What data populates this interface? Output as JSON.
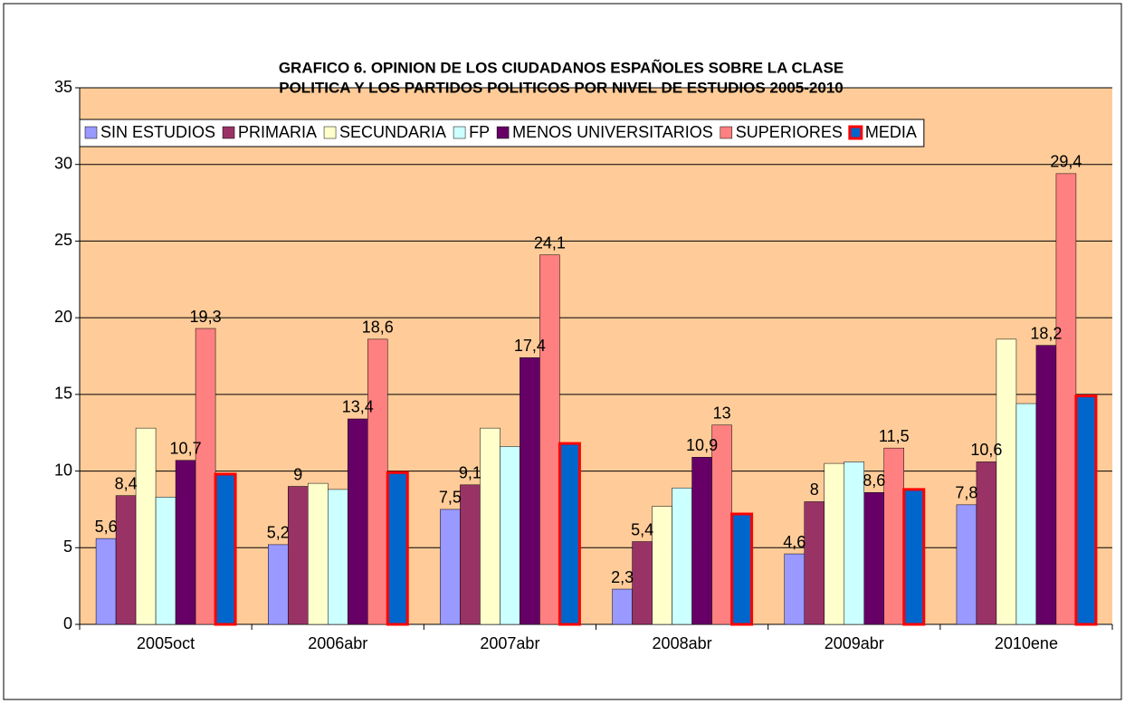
{
  "chart_data": {
    "type": "bar",
    "title": [
      "GRAFICO 6. OPINION DE LOS CIUDADANOS ESPAÑOLES SOBRE LA CLASE",
      "POLITICA Y LOS PARTIDOS POLITICOS POR NIVEL DE ESTUDIOS 2005-2010"
    ],
    "categories": [
      "2005oct",
      "2006abr",
      "2007abr",
      "2008abr",
      "2009abr",
      "2010ene"
    ],
    "series": [
      {
        "name": "SIN ESTUDIOS",
        "color": "#9999ff",
        "values": [
          5.6,
          5.2,
          7.5,
          2.3,
          4.6,
          7.8
        ],
        "value_labels": [
          "5,6",
          "5,2",
          "7,5",
          "2,3",
          "4,6",
          "7,8"
        ]
      },
      {
        "name": "PRIMARIA",
        "color": "#993366",
        "values": [
          8.4,
          9,
          9.1,
          5.4,
          8,
          10.6
        ],
        "value_labels": [
          "8,4",
          "9",
          "9,1",
          "5,4",
          "8",
          "10,6"
        ]
      },
      {
        "name": "SECUNDARIA",
        "color": "#ffffcc",
        "values": [
          12.8,
          9.2,
          12.8,
          7.7,
          10.5,
          18.6
        ]
      },
      {
        "name": "FP",
        "color": "#ccffff",
        "values": [
          8.3,
          8.8,
          11.6,
          8.9,
          10.6,
          14.4
        ]
      },
      {
        "name": "MENOS UNIVERSITARIOS",
        "color": "#660066",
        "values": [
          10.7,
          13.4,
          17.4,
          10.9,
          8.6,
          18.2
        ],
        "value_labels": [
          "10,7",
          "13,4",
          "17,4",
          "10,9",
          "8,6",
          "18,2"
        ]
      },
      {
        "name": "SUPERIORES",
        "color": "#ff8080",
        "values": [
          19.3,
          18.6,
          24.1,
          13,
          11.5,
          29.4
        ],
        "value_labels": [
          "19,3",
          "18,6",
          "24,1",
          "13",
          "11,5",
          "29,4"
        ]
      },
      {
        "name": "MEDIA",
        "color": "#0066cc",
        "border": "#ff0000",
        "values": [
          9.8,
          9.9,
          11.8,
          7.2,
          8.8,
          14.9
        ]
      }
    ],
    "ylim": [
      0,
      35
    ],
    "yticks": [
      0,
      5,
      10,
      15,
      20,
      25,
      30,
      35
    ],
    "grid": true,
    "legend": "top",
    "background": "#ffcc99"
  }
}
